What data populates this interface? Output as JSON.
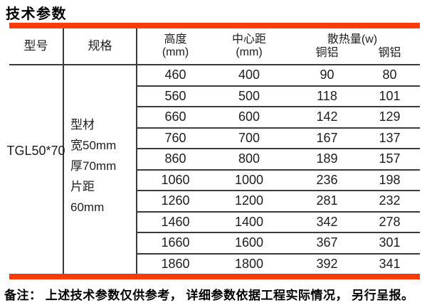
{
  "title": "技术参数",
  "colors": {
    "accent": "#fb3b08",
    "border": "#3a3a3a",
    "text": "#1d1d1d"
  },
  "table": {
    "headers": {
      "model": "型号",
      "spec": "规格",
      "height": "高度",
      "height_unit": "(mm)",
      "center_distance": "中心距",
      "center_distance_unit": "(mm)",
      "heat": "散热量(w)",
      "copper_al": "铜铝",
      "steel_al": "钢铝"
    },
    "model": "TGL50*70",
    "spec_lines": [
      "型材",
      "宽50mm",
      "厚70mm",
      "片距",
      "60mm"
    ],
    "rows": [
      {
        "height": "460",
        "center": "400",
        "copper": "90",
        "steel": "80"
      },
      {
        "height": "560",
        "center": "500",
        "copper": "118",
        "steel": "101"
      },
      {
        "height": "660",
        "center": "600",
        "copper": "142",
        "steel": "129"
      },
      {
        "height": "760",
        "center": "700",
        "copper": "167",
        "steel": "137"
      },
      {
        "height": "860",
        "center": "800",
        "copper": "189",
        "steel": "157"
      },
      {
        "height": "1060",
        "center": "1000",
        "copper": "236",
        "steel": "198"
      },
      {
        "height": "1260",
        "center": "1200",
        "copper": "281",
        "steel": "232"
      },
      {
        "height": "1460",
        "center": "1400",
        "copper": "342",
        "steel": "278"
      },
      {
        "height": "1660",
        "center": "1600",
        "copper": "367",
        "steel": "301"
      },
      {
        "height": "1860",
        "center": "1800",
        "copper": "392",
        "steel": "341"
      }
    ]
  },
  "note": "备注： 上述技术参数仅供参考， 详细参数依据工程实际情况， 另行呈报。"
}
